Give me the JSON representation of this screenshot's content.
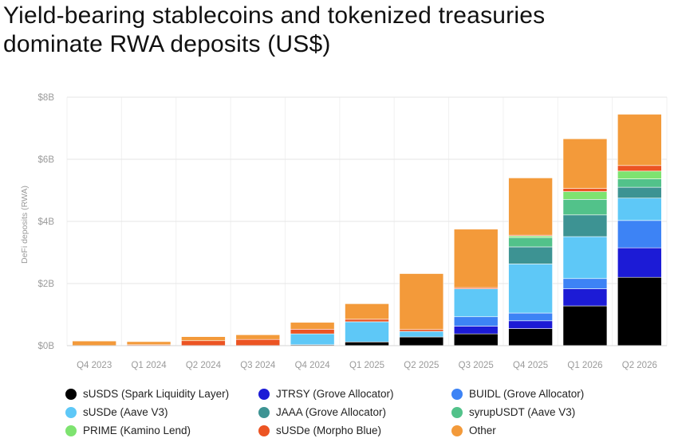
{
  "title_line1": "Yield-bearing stablecoins and tokenized treasuries",
  "title_line2": "dominate RWA deposits (US$)",
  "chart_data": {
    "type": "bar",
    "stacked": true,
    "categories": [
      "Q4 2023",
      "Q1 2024",
      "Q2 2024",
      "Q3 2024",
      "Q4 2024",
      "Q1 2025",
      "Q2 2025",
      "Q3 2025",
      "Q4 2025",
      "Q1 2026",
      "Q2 2026"
    ],
    "ylabel": "DeFi deposits (RWA)",
    "xlabel": "",
    "ylim": [
      0,
      8
    ],
    "yticks": [
      0,
      2,
      4,
      6,
      8
    ],
    "ytick_labels": [
      "$0B",
      "$2B",
      "$4B",
      "$6B",
      "$8B"
    ],
    "unit": "US$ billions",
    "grid": true,
    "legend_position": "bottom",
    "series": [
      {
        "name": "sUSDS (Spark Liquidity Layer)",
        "color": "#000000",
        "values": [
          0,
          0,
          0,
          0,
          0.03,
          0.12,
          0.28,
          0.38,
          0.55,
          1.28,
          2.2
        ]
      },
      {
        "name": "JTRSY (Grove Allocator)",
        "color": "#1c1bd6",
        "values": [
          0,
          0,
          0,
          0,
          0,
          0,
          0,
          0.25,
          0.25,
          0.55,
          0.95
        ]
      },
      {
        "name": "BUIDL (Grove Allocator)",
        "color": "#3d83f5",
        "values": [
          0,
          0,
          0,
          0,
          0,
          0,
          0,
          0.3,
          0.25,
          0.33,
          0.88
        ]
      },
      {
        "name": "sUSDe (Aave V3)",
        "color": "#5ec8f7",
        "values": [
          0,
          0,
          0,
          0,
          0.35,
          0.65,
          0.18,
          0.9,
          1.58,
          1.35,
          0.72
        ]
      },
      {
        "name": "JAAA (Grove Allocator)",
        "color": "#3d9393",
        "values": [
          0,
          0,
          0,
          0,
          0,
          0,
          0,
          0,
          0.55,
          0.7,
          0.35
        ]
      },
      {
        "name": "syrupUSDT (Aave V3)",
        "color": "#52c28a",
        "values": [
          0,
          0,
          0,
          0,
          0,
          0,
          0,
          0,
          0.3,
          0.5,
          0.27
        ]
      },
      {
        "name": "PRIME (Kamino Lend)",
        "color": "#7ee370",
        "values": [
          0,
          0,
          0,
          0,
          0,
          0,
          0,
          0,
          0.05,
          0.25,
          0.25
        ]
      },
      {
        "name": "sUSDe (Morpho Blue)",
        "color": "#ec5423",
        "values": [
          0,
          0.03,
          0.16,
          0.2,
          0.15,
          0.08,
          0.06,
          0.04,
          0.03,
          0.1,
          0.18
        ]
      },
      {
        "name": "Other",
        "color": "#f39a3a",
        "values": [
          0.15,
          0.1,
          0.13,
          0.15,
          0.22,
          0.5,
          1.8,
          1.88,
          1.84,
          1.6,
          1.65
        ]
      }
    ]
  }
}
